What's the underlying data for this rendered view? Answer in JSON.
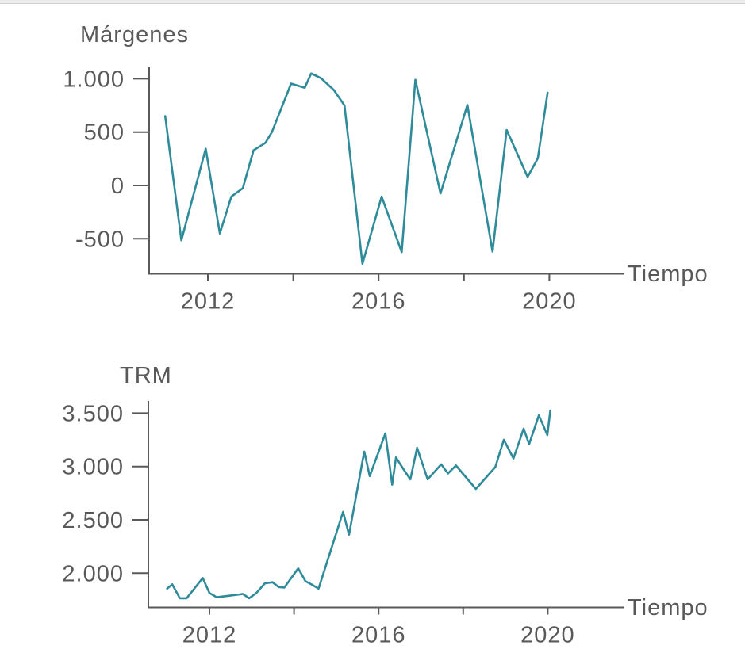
{
  "colors": {
    "line": "#2e8b9a",
    "axis": "#595959",
    "text": "#595959",
    "top_strip": "#ebebeb"
  },
  "chart_data": [
    {
      "type": "line",
      "title": "Márgenes",
      "xlabel": "Tiempo",
      "ylabel": "",
      "grid": false,
      "legend": "none",
      "xlim": [
        2010.6,
        2021.8
      ],
      "ylim": [
        -825,
        1120
      ],
      "yticks": [
        {
          "value": 1000,
          "label": "1.000"
        },
        {
          "value": 500,
          "label": "500"
        },
        {
          "value": 0,
          "label": "0"
        },
        {
          "value": -500,
          "label": "-500"
        }
      ],
      "xticks": [
        {
          "value": 2012,
          "label": "2012"
        },
        {
          "value": 2014,
          "label": ""
        },
        {
          "value": 2016,
          "label": "2016"
        },
        {
          "value": 2018,
          "label": ""
        },
        {
          "value": 2020,
          "label": "2020"
        }
      ],
      "points": [
        [
          2011.0,
          650
        ],
        [
          2011.38,
          -515
        ],
        [
          2011.95,
          345
        ],
        [
          2012.28,
          -450
        ],
        [
          2012.55,
          -105
        ],
        [
          2012.82,
          -25
        ],
        [
          2013.07,
          330
        ],
        [
          2013.35,
          400
        ],
        [
          2013.5,
          500
        ],
        [
          2013.95,
          955
        ],
        [
          2014.27,
          915
        ],
        [
          2014.42,
          1050
        ],
        [
          2014.65,
          1005
        ],
        [
          2014.95,
          895
        ],
        [
          2015.2,
          750
        ],
        [
          2015.62,
          -735
        ],
        [
          2016.07,
          -105
        ],
        [
          2016.54,
          -625
        ],
        [
          2016.86,
          990
        ],
        [
          2017.45,
          -75
        ],
        [
          2018.08,
          755
        ],
        [
          2018.67,
          -620
        ],
        [
          2019.0,
          520
        ],
        [
          2019.49,
          80
        ],
        [
          2019.73,
          255
        ],
        [
          2019.96,
          870
        ]
      ]
    },
    {
      "type": "line",
      "title": "TRM",
      "xlabel": "Tiempo",
      "ylabel": "",
      "grid": false,
      "legend": "none",
      "xlim": [
        2010.6,
        2021.8
      ],
      "ylim": [
        1675,
        3620
      ],
      "yticks": [
        {
          "value": 3500,
          "label": "3.500"
        },
        {
          "value": 3000,
          "label": "3.000"
        },
        {
          "value": 2500,
          "label": "2.500"
        },
        {
          "value": 2000,
          "label": "2.000"
        }
      ],
      "xticks": [
        {
          "value": 2012,
          "label": "2012"
        },
        {
          "value": 2014,
          "label": ""
        },
        {
          "value": 2016,
          "label": "2016"
        },
        {
          "value": 2018,
          "label": ""
        },
        {
          "value": 2020,
          "label": "2020"
        }
      ],
      "points": [
        [
          2011.0,
          1855
        ],
        [
          2011.12,
          1895
        ],
        [
          2011.3,
          1765
        ],
        [
          2011.46,
          1765
        ],
        [
          2011.84,
          1955
        ],
        [
          2012.0,
          1815
        ],
        [
          2012.17,
          1775
        ],
        [
          2012.49,
          1790
        ],
        [
          2012.79,
          1805
        ],
        [
          2012.94,
          1765
        ],
        [
          2013.11,
          1815
        ],
        [
          2013.31,
          1905
        ],
        [
          2013.49,
          1915
        ],
        [
          2013.64,
          1870
        ],
        [
          2013.77,
          1865
        ],
        [
          2014.1,
          2045
        ],
        [
          2014.27,
          1925
        ],
        [
          2014.41,
          1895
        ],
        [
          2014.58,
          1855
        ],
        [
          2015.16,
          2575
        ],
        [
          2015.3,
          2360
        ],
        [
          2015.66,
          3140
        ],
        [
          2015.79,
          2910
        ],
        [
          2016.16,
          3310
        ],
        [
          2016.32,
          2830
        ],
        [
          2016.41,
          3085
        ],
        [
          2016.58,
          2980
        ],
        [
          2016.75,
          2880
        ],
        [
          2016.91,
          3175
        ],
        [
          2017.16,
          2880
        ],
        [
          2017.48,
          3020
        ],
        [
          2017.64,
          2935
        ],
        [
          2017.83,
          3010
        ],
        [
          2018.3,
          2790
        ],
        [
          2018.76,
          2995
        ],
        [
          2018.96,
          3250
        ],
        [
          2019.19,
          3075
        ],
        [
          2019.43,
          3355
        ],
        [
          2019.56,
          3210
        ],
        [
          2019.79,
          3480
        ],
        [
          2019.99,
          3295
        ],
        [
          2020.06,
          3525
        ]
      ]
    }
  ]
}
